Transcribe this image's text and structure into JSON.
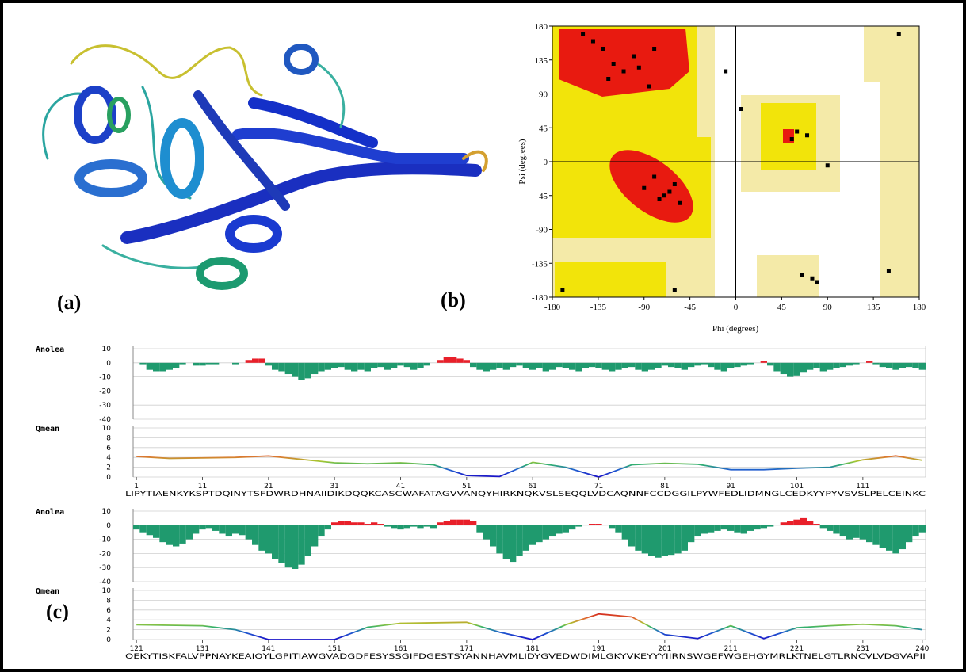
{
  "labels": [
    "(a)",
    "(b)",
    "(c)"
  ],
  "ramachandran": {
    "type": "scatter",
    "xlabel": "Phi (degrees)",
    "ylabel": "Psi (degrees)",
    "xlim": [
      -180,
      180
    ],
    "ylim": [
      -180,
      180
    ],
    "xticks": [
      -180,
      -135,
      -90,
      -45,
      0,
      45,
      90,
      135,
      180
    ],
    "yticks": [
      -180,
      -135,
      -90,
      -45,
      0,
      45,
      90,
      135,
      180
    ],
    "x": [
      -65,
      -70,
      -60,
      -80,
      -90,
      -75,
      -55,
      -120,
      -130,
      -100,
      -140,
      -110,
      -80,
      -150,
      60,
      55,
      70,
      90,
      5,
      75,
      80,
      -170,
      -60,
      150,
      160,
      -10,
      65,
      -95,
      -125,
      -85
    ],
    "y": [
      -40,
      -45,
      -30,
      -20,
      -35,
      -50,
      -55,
      130,
      150,
      140,
      160,
      120,
      150,
      170,
      40,
      30,
      35,
      -5,
      70,
      -155,
      -160,
      -170,
      -170,
      -145,
      170,
      120,
      -150,
      125,
      110,
      100
    ],
    "color": "#000000"
  },
  "profiles": [
    {
      "xlim": [
        1,
        120
      ],
      "xticks": [
        1,
        11,
        21,
        31,
        41,
        51,
        61,
        71,
        81,
        91,
        101,
        111
      ],
      "sequence": "LIPYTIAENKYKSPTDQINYTSFDWRDHNAIIDIKDQQKCASCWAFATAGVVANQYHIRKNQKVSLSEQQLVDCAQNNFCCDGGILPYWFEDLIDMNGLCEDKYYPYVSVSLPELCEINKC",
      "anolea": {
        "name": "Anolea",
        "ylim": [
          -40,
          10
        ],
        "yticks": [
          10,
          0,
          -10,
          -20,
          -30,
          -40
        ],
        "pos_color": "#e8202a",
        "neg_color": "#1f9a6e",
        "values": [
          0,
          -1,
          -5,
          -6,
          -6,
          -5,
          -4,
          -1,
          0,
          -2,
          -2,
          -1,
          -1,
          0,
          0,
          -1,
          0,
          2,
          3,
          3,
          -2,
          -5,
          -6,
          -8,
          -10,
          -12,
          -11,
          -8,
          -6,
          -5,
          -4,
          -3,
          -5,
          -6,
          -5,
          -6,
          -4,
          -3,
          -5,
          -4,
          -2,
          -3,
          -5,
          -4,
          -2,
          0,
          2,
          4,
          4,
          3,
          2,
          -3,
          -5,
          -6,
          -5,
          -4,
          -5,
          -3,
          -2,
          -4,
          -5,
          -4,
          -6,
          -5,
          -3,
          -4,
          -5,
          -6,
          -4,
          -3,
          -4,
          -5,
          -6,
          -5,
          -4,
          -3,
          -5,
          -6,
          -5,
          -4,
          -2,
          -3,
          -4,
          -5,
          -3,
          -2,
          -1,
          -3,
          -5,
          -6,
          -4,
          -3,
          -2,
          -1,
          0,
          1,
          -2,
          -6,
          -8,
          -10,
          -9,
          -7,
          -5,
          -4,
          -6,
          -5,
          -4,
          -3,
          -2,
          -1,
          0,
          1,
          -1,
          -3,
          -4,
          -5,
          -4,
          -3,
          -4,
          -5
        ]
      },
      "qmean": {
        "name": "Qmean",
        "ylim": [
          0,
          10
        ],
        "yticks": [
          10,
          8,
          6,
          4,
          2,
          0
        ],
        "x": [
          1,
          6,
          11,
          16,
          21,
          26,
          31,
          36,
          41,
          46,
          51,
          56,
          61,
          66,
          71,
          76,
          81,
          86,
          91,
          96,
          101,
          106,
          111,
          116,
          120
        ],
        "values": [
          4.2,
          3.8,
          3.9,
          4.0,
          4.3,
          3.6,
          2.9,
          2.7,
          2.9,
          2.5,
          0.3,
          0.1,
          3.0,
          2.0,
          0.0,
          2.5,
          2.8,
          2.6,
          1.5,
          1.5,
          1.8,
          2.0,
          3.5,
          4.3,
          3.4
        ]
      }
    },
    {
      "xlim": [
        121,
        240
      ],
      "xticks": [
        121,
        131,
        141,
        151,
        161,
        171,
        181,
        191,
        201,
        211,
        221,
        231,
        240
      ],
      "sequence": "QEKYTISKFALVPPNAYKEAIQYLGPITIAWGVADGDFESYSSGIFDGESTSYANNHAVMLIDYGVEDWDIMLGKYVKEYYYIIRNSWGEFWGEHGYMRLKTNELGTLRNCVLVDGVAPII",
      "anolea": {
        "name": "Anolea",
        "ylim": [
          -40,
          10
        ],
        "yticks": [
          10,
          0,
          -10,
          -20,
          -30,
          -40
        ],
        "pos_color": "#e8202a",
        "neg_color": "#1f9a6e",
        "values": [
          -3,
          -5,
          -7,
          -9,
          -12,
          -14,
          -15,
          -13,
          -10,
          -6,
          -3,
          -2,
          -4,
          -6,
          -8,
          -6,
          -7,
          -10,
          -14,
          -18,
          -20,
          -24,
          -27,
          -30,
          -31,
          -28,
          -22,
          -15,
          -8,
          -3,
          2,
          3,
          3,
          2,
          2,
          1,
          2,
          1,
          -1,
          -2,
          -3,
          -2,
          -1,
          -2,
          -1,
          -2,
          2,
          3,
          4,
          4,
          4,
          3,
          -5,
          -10,
          -15,
          -20,
          -24,
          -26,
          -22,
          -18,
          -14,
          -12,
          -10,
          -8,
          -6,
          -5,
          -3,
          -1,
          0,
          1,
          1,
          0,
          -2,
          -5,
          -10,
          -15,
          -18,
          -20,
          -22,
          -23,
          -22,
          -21,
          -20,
          -18,
          -12,
          -8,
          -6,
          -5,
          -4,
          -3,
          -4,
          -5,
          -6,
          -4,
          -3,
          -2,
          -1,
          0,
          2,
          3,
          4,
          5,
          3,
          1,
          -2,
          -4,
          -6,
          -8,
          -10,
          -9,
          -10,
          -12,
          -14,
          -16,
          -18,
          -20,
          -17,
          -12,
          -8,
          -5
        ]
      },
      "qmean": {
        "name": "Qmean",
        "ylim": [
          0,
          10
        ],
        "yticks": [
          10,
          8,
          6,
          4,
          2,
          0
        ],
        "x": [
          121,
          126,
          131,
          136,
          141,
          146,
          151,
          156,
          161,
          166,
          171,
          176,
          181,
          186,
          191,
          196,
          201,
          206,
          211,
          216,
          221,
          226,
          231,
          236,
          240
        ],
        "values": [
          3.0,
          2.9,
          2.8,
          2.0,
          0.0,
          0.0,
          0.0,
          2.5,
          3.3,
          3.4,
          3.5,
          1.5,
          0.0,
          3.0,
          5.2,
          4.6,
          1.0,
          0.2,
          2.8,
          0.2,
          2.4,
          2.8,
          3.1,
          2.8,
          2.0
        ]
      }
    }
  ]
}
